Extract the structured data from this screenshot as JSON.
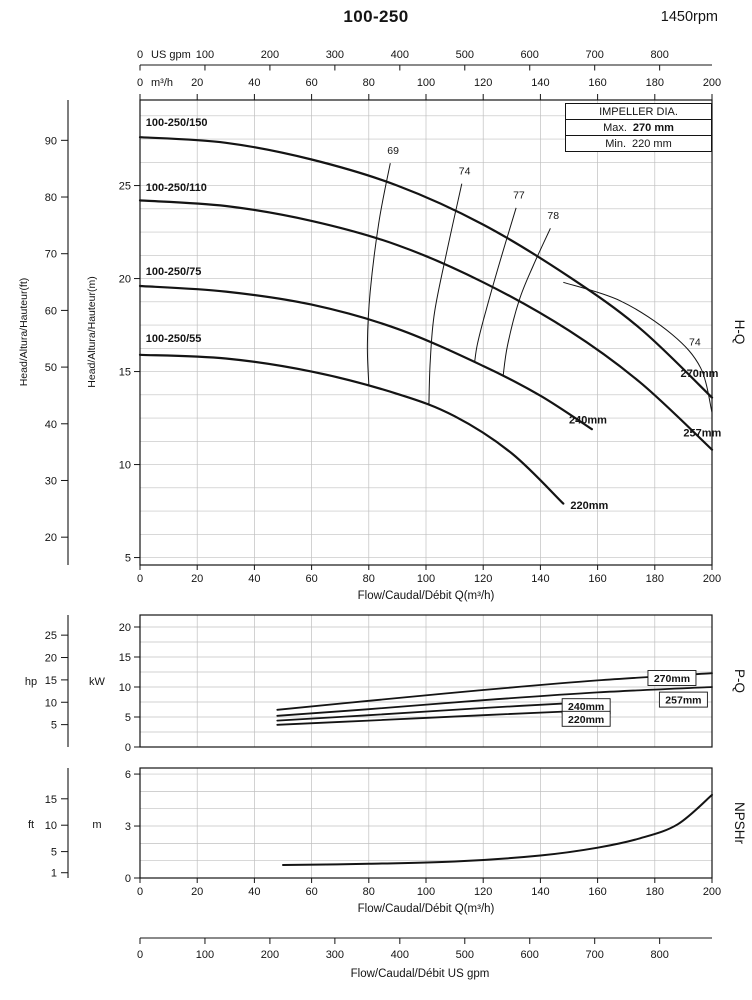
{
  "header": {
    "title": "100-250",
    "rpm": "1450rpm"
  },
  "impeller_box": {
    "title": "IMPELLER DIA.",
    "max_label": "Max.",
    "max_value": "270 mm",
    "min_label": "Min.",
    "min_value": "220 mm"
  },
  "top_scales": {
    "gpm": {
      "unit": "US gpm",
      "ticks": [
        0,
        100,
        200,
        300,
        400,
        500,
        600,
        700,
        800
      ]
    },
    "m3h": {
      "unit": "m³/h",
      "ticks": [
        0,
        20,
        40,
        60,
        80,
        100,
        120,
        140,
        160,
        180,
        200
      ]
    }
  },
  "bottom_scale": {
    "unit": "US gpm",
    "ticks": [
      0,
      100,
      200,
      300,
      400,
      500,
      600,
      700,
      800
    ],
    "title": "Flow/Caudal/Débit  US gpm"
  },
  "chart_data": [
    {
      "id": "hq",
      "type": "line",
      "right_label": "H-Q",
      "xlabel": "Flow/Caudal/Débit Q(m³/h)",
      "xlim": [
        0,
        200
      ],
      "x_ticks": [
        0,
        20,
        40,
        60,
        80,
        100,
        120,
        140,
        160,
        180,
        200
      ],
      "grid_step_m": 1.25,
      "y_m": {
        "label": "Head/Altura/Hauteur(m)",
        "ticks": [
          5,
          10,
          15,
          20,
          25
        ],
        "lim": [
          4.6,
          29.6
        ]
      },
      "y_ft": {
        "label": "Head/Altura/Hauteur(ft)",
        "ticks": [
          20,
          30,
          40,
          50,
          60,
          70,
          80,
          90
        ]
      },
      "series": [
        {
          "name": "270mm",
          "model": "100-250/150",
          "points_m3h_m": [
            [
              0,
              27.6
            ],
            [
              30,
              27.3
            ],
            [
              60,
              26.4
            ],
            [
              90,
              25.0
            ],
            [
              120,
              22.9
            ],
            [
              150,
              20.1
            ],
            [
              175,
              17.3
            ],
            [
              200,
              13.6
            ]
          ],
          "dia_label_pos": [
            189,
            14.7
          ],
          "model_label_pos": [
            2,
            28.2
          ]
        },
        {
          "name": "257mm",
          "model": "100-250/110",
          "points_m3h_m": [
            [
              0,
              24.2
            ],
            [
              30,
              23.9
            ],
            [
              60,
              23.1
            ],
            [
              90,
              21.8
            ],
            [
              120,
              19.8
            ],
            [
              150,
              17.2
            ],
            [
              175,
              14.4
            ],
            [
              200,
              10.8
            ]
          ],
          "dia_label_pos": [
            190,
            11.5
          ],
          "model_label_pos": [
            2,
            24.7
          ]
        },
        {
          "name": "240mm",
          "model": "100-250/75",
          "points_m3h_m": [
            [
              0,
              19.6
            ],
            [
              30,
              19.3
            ],
            [
              60,
              18.6
            ],
            [
              90,
              17.3
            ],
            [
              120,
              15.3
            ],
            [
              140,
              13.7
            ],
            [
              158,
              11.9
            ]
          ],
          "dia_label_pos": [
            150,
            12.2
          ],
          "model_label_pos": [
            2,
            20.2
          ]
        },
        {
          "name": "220mm",
          "model": "100-250/55",
          "points_m3h_m": [
            [
              0,
              15.9
            ],
            [
              30,
              15.7
            ],
            [
              60,
              15.0
            ],
            [
              90,
              13.8
            ],
            [
              110,
              12.6
            ],
            [
              130,
              10.6
            ],
            [
              148,
              7.9
            ]
          ],
          "dia_label_pos": [
            150.5,
            7.6
          ],
          "model_label_pos": [
            2,
            16.6
          ]
        }
      ],
      "efficiency_curves": [
        {
          "label": "69",
          "points": [
            [
              87.5,
              26.2
            ],
            [
              83.5,
              23.0
            ],
            [
              80.5,
              19.3
            ],
            [
              79.5,
              16.5
            ],
            [
              80,
              14.3
            ]
          ],
          "label_pos": [
            88.5,
            26.7
          ]
        },
        {
          "label": "74",
          "points": [
            [
              112.5,
              25.1
            ],
            [
              107.5,
              21.6
            ],
            [
              103,
              18.2
            ],
            [
              101.5,
              15.6
            ],
            [
              101,
              13.2
            ]
          ],
          "label_pos": [
            113.5,
            25.6
          ]
        },
        {
          "label": "77",
          "points": [
            [
              131.5,
              23.8
            ],
            [
              126,
              21.0
            ],
            [
              121,
              18.3
            ],
            [
              118,
              16.5
            ],
            [
              117,
              15.5
            ]
          ],
          "label_pos": [
            132.5,
            24.3
          ]
        },
        {
          "label": "78",
          "points": [
            [
              143.5,
              22.7
            ],
            [
              137.5,
              20.7
            ],
            [
              132.5,
              18.8
            ],
            [
              128.5,
              16.4
            ],
            [
              127,
              14.8
            ]
          ],
          "label_pos": [
            144.5,
            23.2
          ]
        },
        {
          "label": "74",
          "points": [
            [
              148,
              19.8
            ],
            [
              168,
              18.8
            ],
            [
              186,
              17.0
            ],
            [
              196,
              15.2
            ],
            [
              200,
              12.8
            ]
          ],
          "label_pos": [
            194,
            16.4
          ]
        }
      ]
    },
    {
      "id": "pq",
      "type": "line",
      "right_label": "P-Q",
      "x_ticks": [
        0,
        20,
        40,
        60,
        80,
        100,
        120,
        140,
        160,
        180,
        200
      ],
      "grid_step_kw": 2.5,
      "y_kw": {
        "label": "kW",
        "ticks": [
          0,
          5,
          10,
          15,
          20
        ],
        "lim": [
          0,
          22
        ]
      },
      "y_hp": {
        "label": "hp",
        "ticks": [
          5,
          10,
          15,
          20,
          25
        ]
      },
      "series": [
        {
          "name": "270mm",
          "points_m3h_kw": [
            [
              48,
              6.2
            ],
            [
              80,
              7.7
            ],
            [
              120,
              9.5
            ],
            [
              160,
              11.1
            ],
            [
              200,
              12.3
            ]
          ],
          "label_pos": [
            186,
            11.5
          ]
        },
        {
          "name": "257mm",
          "points_m3h_kw": [
            [
              48,
              5.2
            ],
            [
              80,
              6.3
            ],
            [
              120,
              7.8
            ],
            [
              160,
              9.1
            ],
            [
              200,
              10.0
            ]
          ],
          "label_pos": [
            190,
            7.9
          ]
        },
        {
          "name": "240mm",
          "points_m3h_kw": [
            [
              48,
              4.4
            ],
            [
              80,
              5.3
            ],
            [
              120,
              6.5
            ],
            [
              158,
              7.5
            ]
          ],
          "label_pos": [
            156,
            6.8
          ]
        },
        {
          "name": "220mm",
          "points_m3h_kw": [
            [
              48,
              3.7
            ],
            [
              80,
              4.4
            ],
            [
              120,
              5.3
            ],
            [
              148,
              5.9
            ]
          ],
          "label_pos": [
            156,
            4.7
          ]
        }
      ]
    },
    {
      "id": "npshr",
      "type": "line",
      "right_label": "NPSHr",
      "xlabel": "Flow/Caudal/Débit Q(m³/h)",
      "x_ticks": [
        0,
        20,
        40,
        60,
        80,
        100,
        120,
        140,
        160,
        180,
        200
      ],
      "grid_step_m": 1,
      "y_m": {
        "label": "m",
        "ticks": [
          0,
          3,
          6
        ],
        "lim": [
          0,
          6.35
        ]
      },
      "y_ft": {
        "label": "ft",
        "ticks": [
          1,
          5,
          10,
          15
        ]
      },
      "series": [
        {
          "name": "NPSHr",
          "points_m3h_m": [
            [
              50,
              0.75
            ],
            [
              80,
              0.82
            ],
            [
              110,
              0.95
            ],
            [
              140,
              1.3
            ],
            [
              160,
              1.75
            ],
            [
              175,
              2.3
            ],
            [
              188,
              3.1
            ],
            [
              200,
              4.8
            ]
          ]
        }
      ]
    }
  ]
}
